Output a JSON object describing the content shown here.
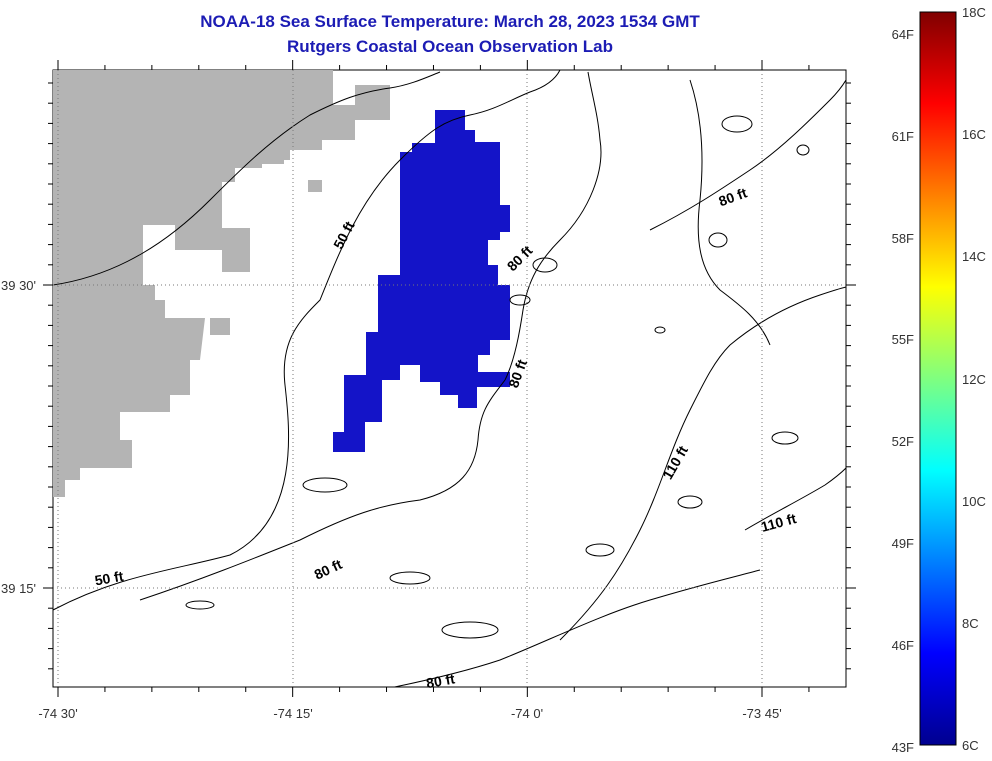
{
  "title": "NOAA-18 Sea Surface Temperature:  March 28, 2023 1534 GMT",
  "subtitle": "Rutgers Coastal Ocean Observation Lab",
  "map": {
    "lon_labels": [
      "-74 30'",
      "-74 15'",
      "-74 0'",
      "-73 45'"
    ],
    "lat_labels": [
      "39 30'",
      "39 15'"
    ],
    "contour_labels": [
      "50 ft",
      "50 ft",
      "80 ft",
      "80 ft",
      "80 ft",
      "80 ft",
      "80 ft",
      "110 ft",
      "110 ft"
    ]
  },
  "colorbar": {
    "fahrenheit_labels": [
      "64F",
      "61F",
      "58F",
      "55F",
      "52F",
      "49F",
      "46F",
      "43F"
    ],
    "celsius_labels": [
      "18C",
      "16C",
      "14C",
      "12C",
      "10C",
      "8C",
      "6C"
    ],
    "range_c": [
      6,
      18
    ]
  },
  "colors": {
    "title": "#1c1cb4",
    "land": "#b4b4b4",
    "sst_patch": "#1414c8"
  }
}
